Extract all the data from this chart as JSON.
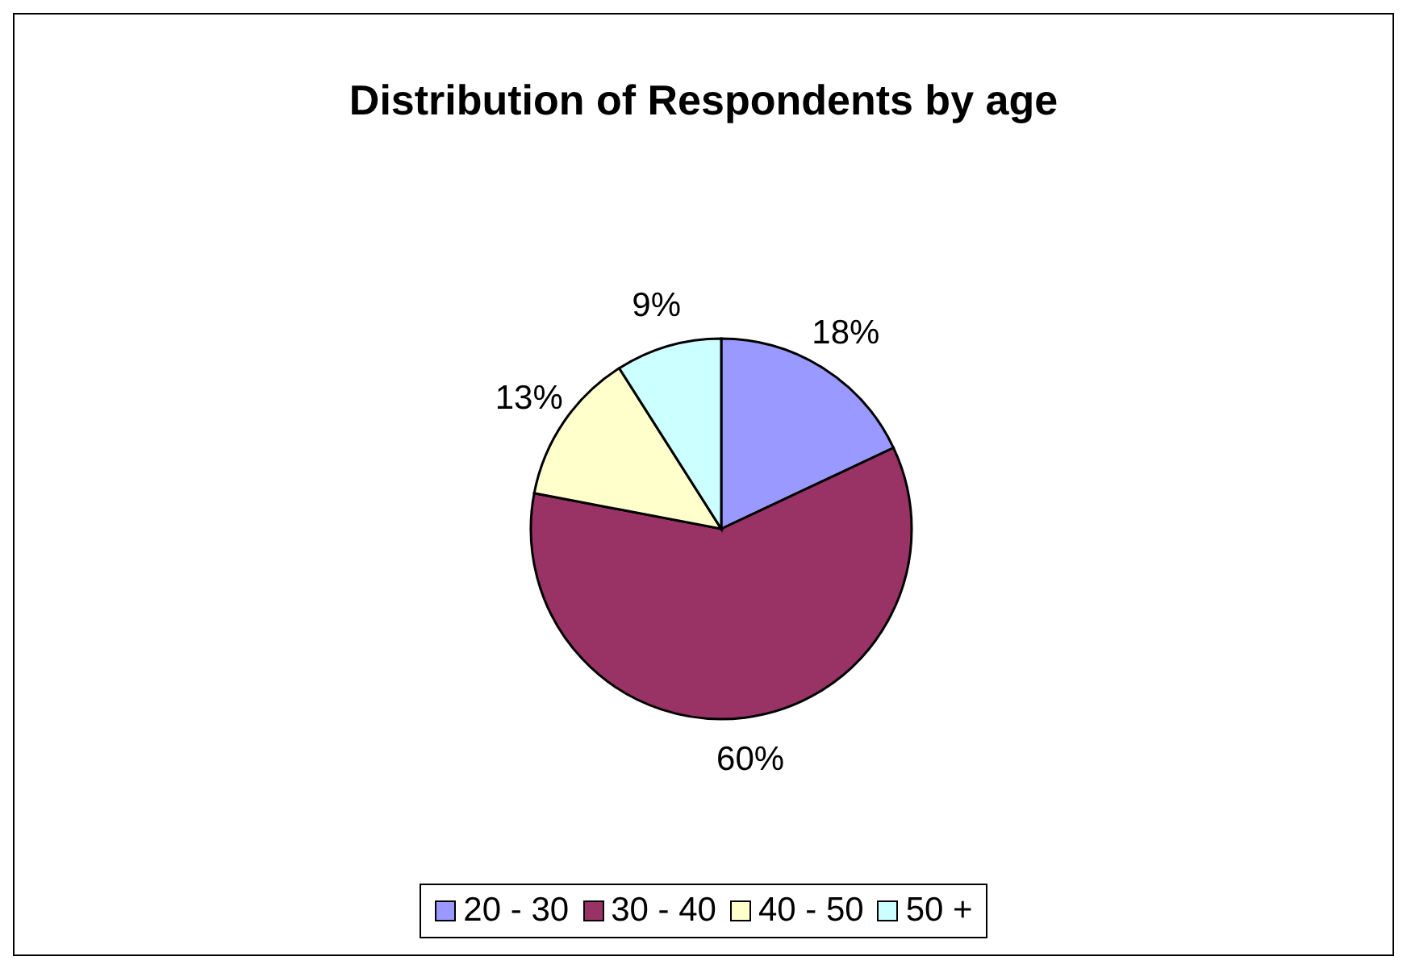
{
  "chart_data": {
    "type": "pie",
    "title": "Distribution of Respondents by age",
    "categories": [
      "20 - 30",
      "30 - 40",
      "40 - 50",
      "50 +"
    ],
    "values": [
      18,
      60,
      13,
      9
    ],
    "colors": [
      "#9999ff",
      "#993366",
      "#ffffcc",
      "#ccffff"
    ],
    "value_labels": [
      "18%",
      "60%",
      "13%",
      "9%"
    ],
    "legend": "bottom"
  }
}
